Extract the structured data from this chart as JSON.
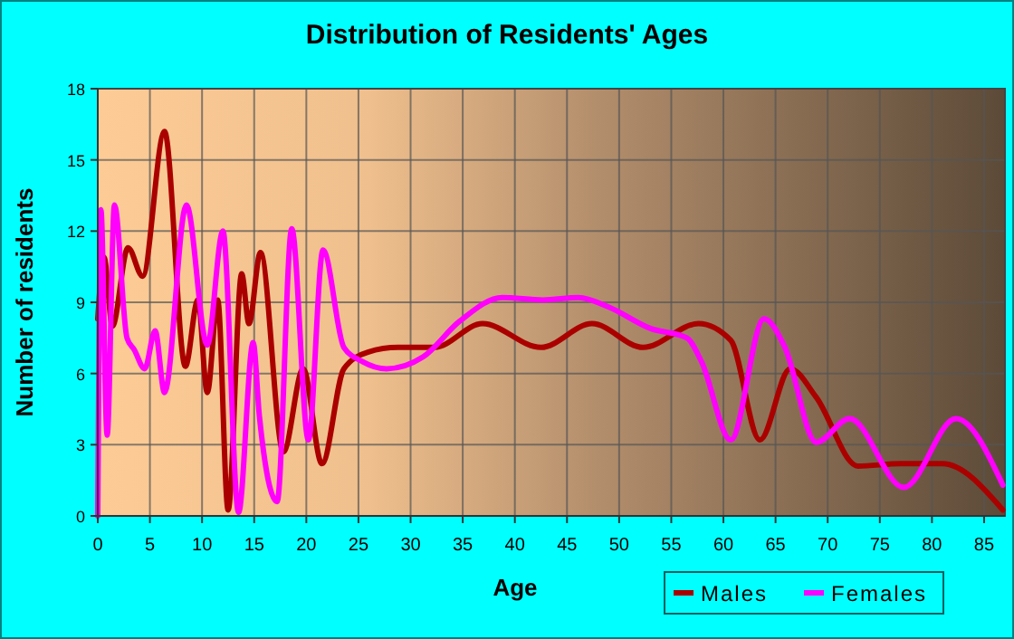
{
  "chart_data": {
    "type": "line",
    "title": "Distribution of Residents' Ages",
    "xlabel": "Age",
    "ylabel": "Number of residents",
    "xlim": [
      0,
      87
    ],
    "xticks": [
      0,
      5,
      10,
      15,
      20,
      25,
      30,
      35,
      40,
      45,
      50,
      55,
      60,
      65,
      70,
      75,
      80,
      85
    ],
    "ylim": [
      0,
      18
    ],
    "yticks": [
      0,
      3,
      6,
      9,
      12,
      15,
      18
    ],
    "grid": true,
    "legend": "bottom right",
    "series": [
      {
        "name": "Males",
        "color": "#aa0000",
        "x": [
          0,
          0.6,
          1.4,
          2.9,
          4.3,
          6.4,
          8.4,
          9.6,
          10.5,
          11.5,
          12.5,
          13.8,
          14.5,
          15.6,
          17.8,
          19.7,
          21.5,
          23.6,
          25.9,
          28.8,
          32.3,
          36.9,
          42.5,
          47.4,
          52.3,
          57.6,
          60.7,
          63.5,
          66.4,
          68.9,
          72.9,
          77,
          81,
          86.8
        ],
        "values": [
          8.3,
          10.9,
          8,
          11.3,
          10.1,
          16.2,
          6.3,
          9.1,
          5.2,
          9.1,
          0.25,
          10.2,
          8.1,
          11.1,
          2.7,
          6.2,
          2.2,
          6.2,
          6.9,
          7.1,
          7.1,
          8.1,
          7.1,
          8.1,
          7.1,
          8.1,
          7.4,
          3.2,
          6.2,
          5,
          2.1,
          2.2,
          2.2,
          0.25
        ]
      },
      {
        "name": "Females",
        "color": "#ff00ff",
        "x": [
          0,
          0.3,
          0.9,
          1.6,
          2.8,
          3.5,
          4.5,
          5.5,
          6.4,
          8.5,
          10.5,
          12,
          13.5,
          14.9,
          15.5,
          17.2,
          18.6,
          20.2,
          21.6,
          23.6,
          25.4,
          27.7,
          31.2,
          34.7,
          38.8,
          42.7,
          46.1,
          49,
          53,
          56.5,
          57.9,
          60.7,
          63.9,
          65.9,
          68.9,
          72.1,
          77.3,
          82.3,
          86.8
        ],
        "values": [
          0,
          12.9,
          3.4,
          13.1,
          7.5,
          7,
          6.2,
          7.8,
          5.2,
          13.1,
          7.2,
          12,
          0.15,
          7.3,
          4.2,
          0.6,
          12.1,
          3.2,
          11.2,
          7.1,
          6.5,
          6.2,
          6.7,
          8.2,
          9.2,
          9.1,
          9.2,
          8.8,
          7.9,
          7.5,
          6.5,
          3.2,
          8.3,
          7.1,
          3.1,
          4.1,
          1.2,
          4.1,
          1.3
        ]
      }
    ]
  }
}
